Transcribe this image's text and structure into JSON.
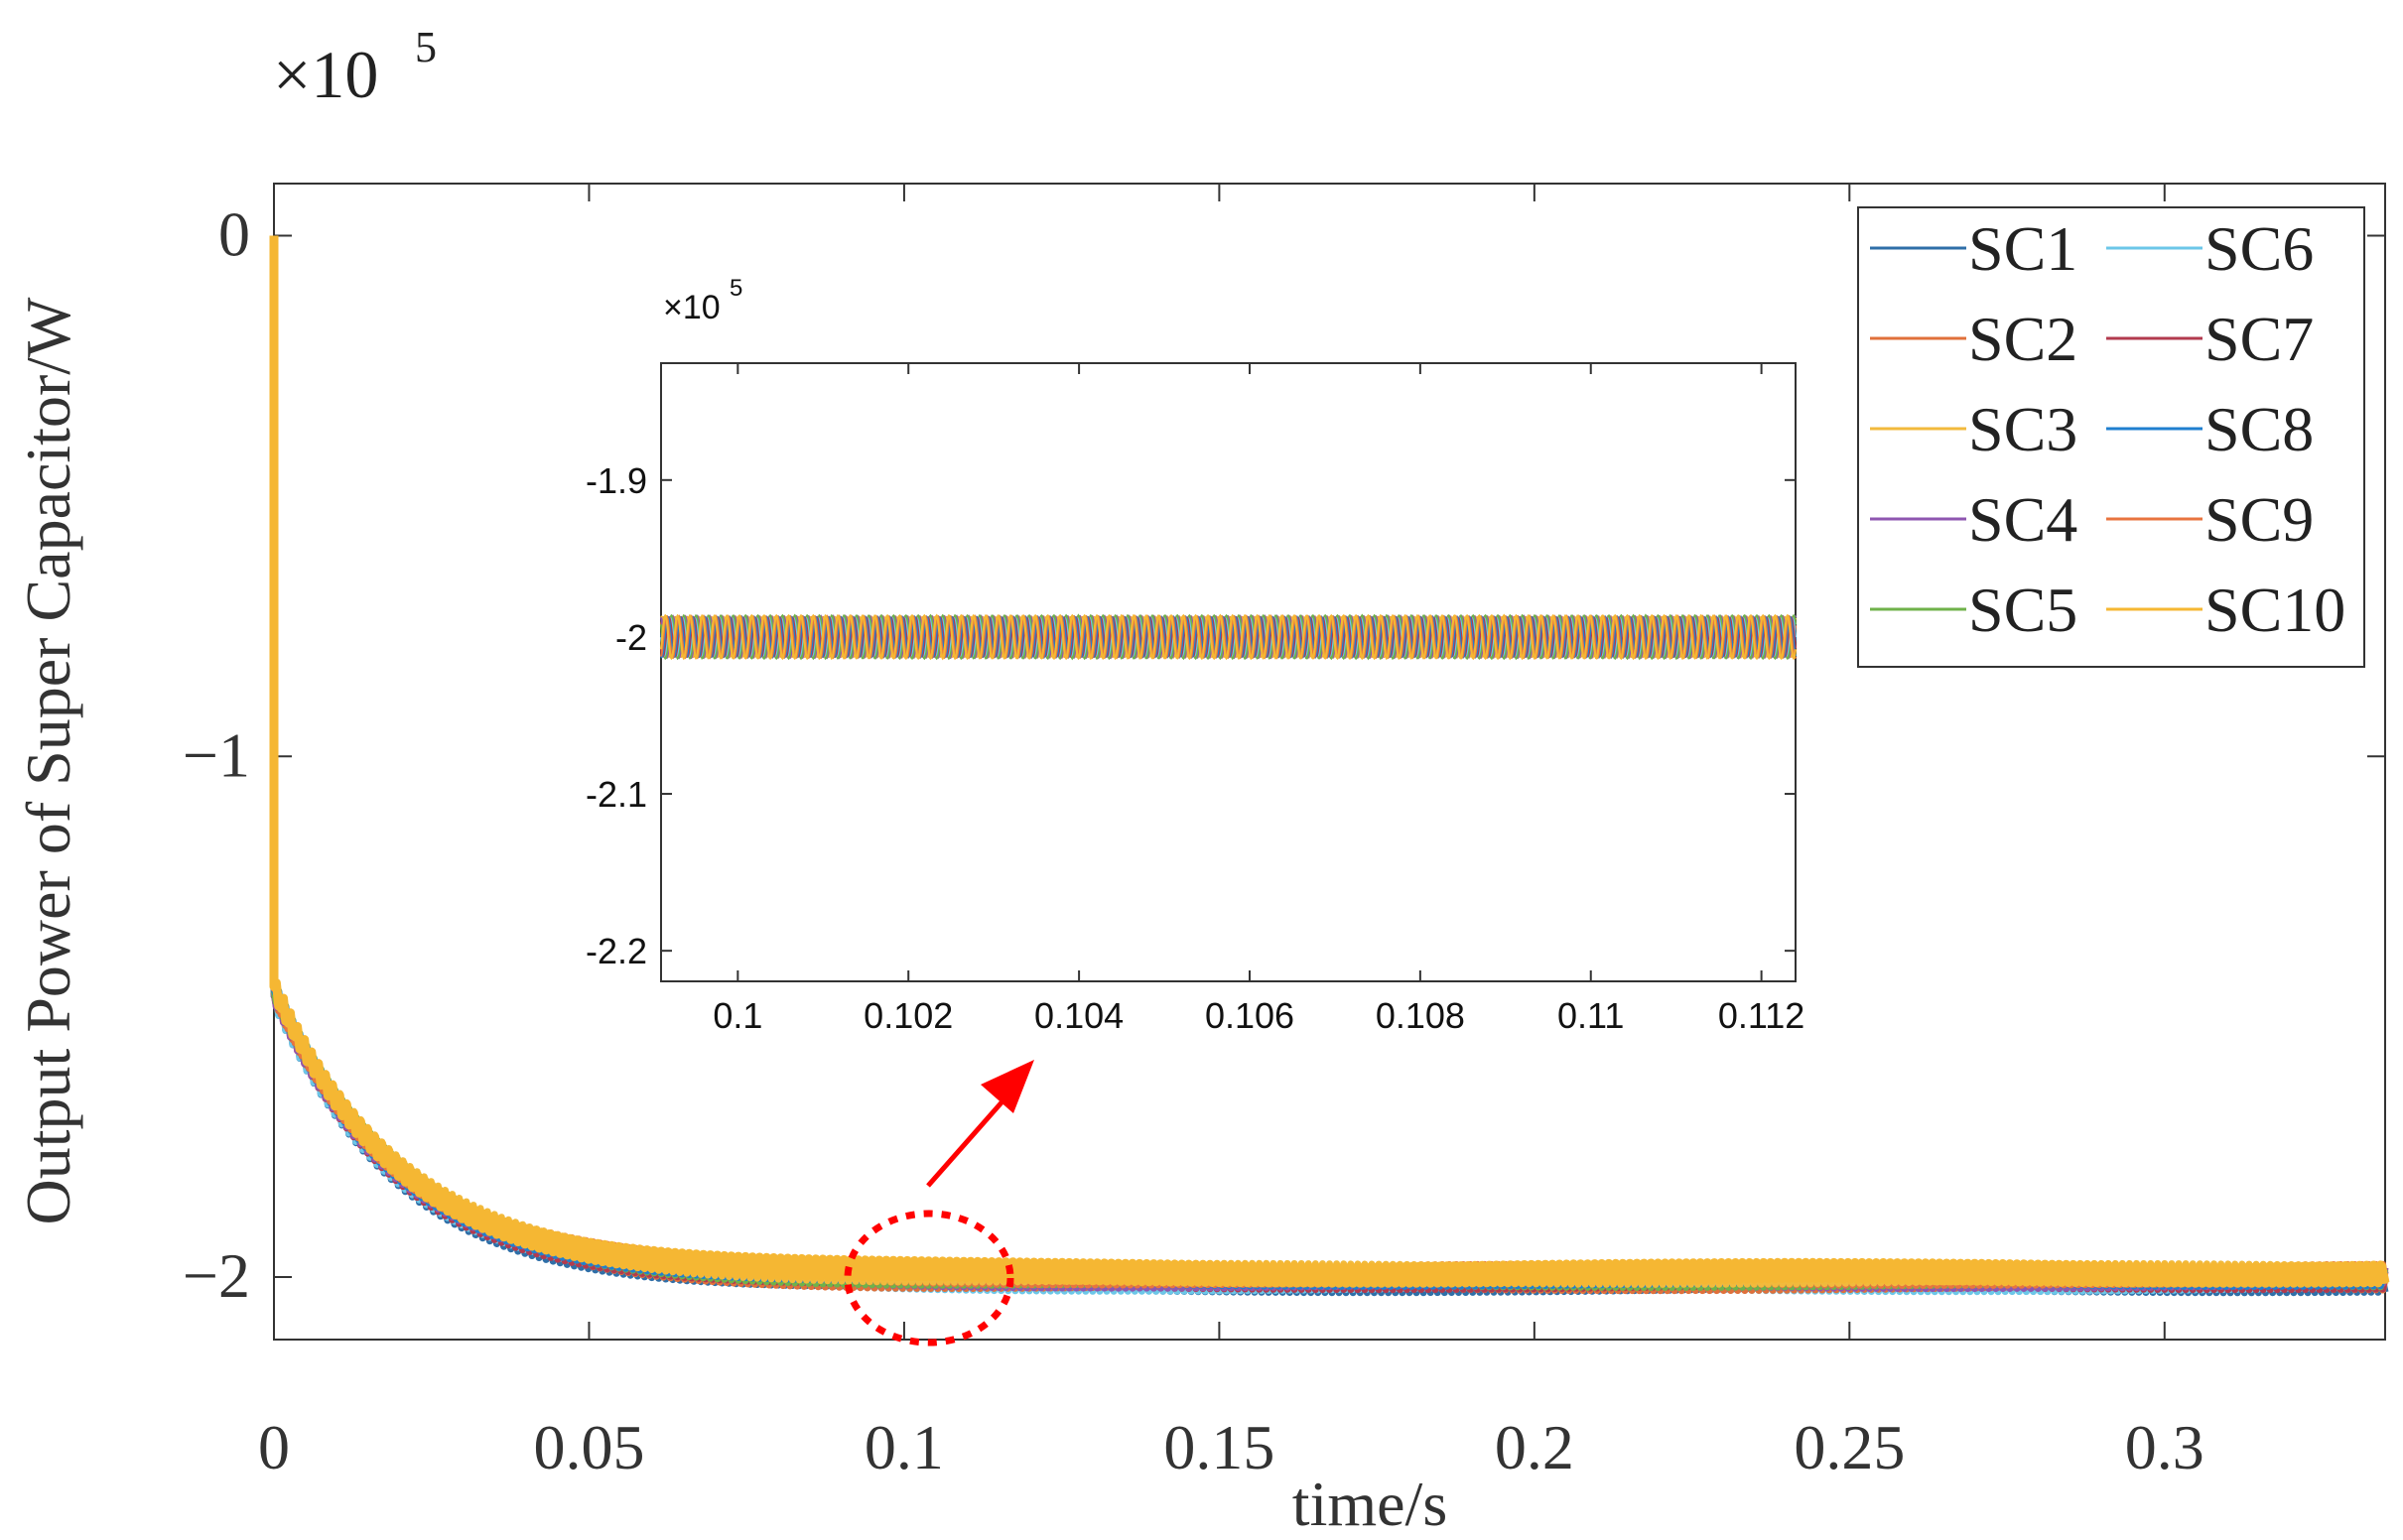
{
  "chart_data": [
    {
      "id": "main",
      "type": "line",
      "title": "",
      "xlabel": "time/s",
      "ylabel": "Output Power of Super Capacitor/W",
      "y_multiplier": "×10",
      "y_multiplier_exp": "5",
      "xlim": [
        0,
        0.335
      ],
      "ylim": [
        -2.12,
        0.1
      ],
      "x_ticks": [
        0,
        0.05,
        0.1,
        0.15,
        0.2,
        0.25,
        0.3
      ],
      "x_tick_labels": [
        "0",
        "0.05",
        "0.1",
        "0.15",
        "0.2",
        "0.25",
        "0.3"
      ],
      "y_ticks": [
        0,
        -1,
        -2
      ],
      "y_tick_labels": [
        "0",
        "−1",
        "−2"
      ],
      "curve": {
        "start_value": 0,
        "jump_value": -1.45,
        "steady_value": -2.0,
        "time_constant": 0.02,
        "ripple_amplitude": 0.02
      },
      "series": [
        {
          "name": "SC1",
          "color": "#2F6FA8"
        },
        {
          "name": "SC2",
          "color": "#E0703A"
        },
        {
          "name": "SC3",
          "color": "#F2BA3C"
        },
        {
          "name": "SC4",
          "color": "#8E56B0"
        },
        {
          "name": "SC5",
          "color": "#6FB24A"
        },
        {
          "name": "SC6",
          "color": "#6CC7E8"
        },
        {
          "name": "SC7",
          "color": "#B23A4E"
        },
        {
          "name": "SC8",
          "color": "#1F7FCF"
        },
        {
          "name": "SC9",
          "color": "#E8743F"
        },
        {
          "name": "SC10",
          "color": "#F5B733"
        }
      ],
      "legend_position": "top-right",
      "legend_columns": 2
    },
    {
      "id": "inset",
      "type": "line",
      "y_multiplier": "×10",
      "y_multiplier_exp": "5",
      "xlim": [
        0.0991,
        0.1124
      ],
      "ylim": [
        -2.2195,
        -1.8255
      ],
      "x_ticks": [
        0.1,
        0.102,
        0.104,
        0.106,
        0.108,
        0.11,
        0.112
      ],
      "x_tick_labels": [
        "0.1",
        "0.102",
        "0.104",
        "0.106",
        "0.108",
        "0.11",
        "0.112"
      ],
      "y_ticks": [
        -1.9,
        -2,
        -2.1,
        -2.2
      ],
      "y_tick_labels": [
        "-1.9",
        "-2",
        "-2.1",
        "-2.2"
      ],
      "signal_center": -2.0,
      "signal_amplitude": 0.014,
      "oscillation_cycles": 92
    }
  ],
  "annotation": {
    "circle_color": "#FF0000",
    "arrow_color": "#FF0000"
  }
}
